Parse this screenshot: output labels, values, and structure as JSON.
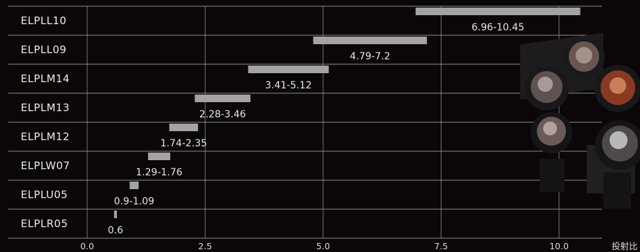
{
  "chart_data": {
    "type": "bar",
    "orientation": "horizontal-range",
    "categories": [
      "ELPLL10",
      "ELPLL09",
      "ELPLM14",
      "ELPLM13",
      "ELPLM12",
      "ELPLW07",
      "ELPLU05",
      "ELPLR05"
    ],
    "ranges": [
      [
        6.96,
        10.45
      ],
      [
        4.79,
        7.2
      ],
      [
        3.41,
        5.12
      ],
      [
        2.28,
        3.46
      ],
      [
        1.74,
        2.35
      ],
      [
        1.29,
        1.76
      ],
      [
        0.9,
        1.09
      ],
      [
        0.57,
        0.63
      ]
    ],
    "range_labels": [
      "6.96-10.45",
      "4.79-7.2",
      "3.41-5.12",
      "2.28-3.46",
      "1.74-2.35",
      "1.29-1.76",
      "0.9-1.09",
      "0.6"
    ],
    "x_ticks": [
      "0.0",
      "2.5",
      "5.0",
      "7.5",
      "10.0"
    ],
    "x_tick_values": [
      0,
      2.5,
      5,
      7.5,
      10
    ],
    "xlabel": "投射比",
    "xlim": [
      0,
      11
    ],
    "grid": true,
    "colors": {
      "bar": "#a3a3a3",
      "grid": "#bdbdbd",
      "background": "#0b0708",
      "text": "#e9e9e9"
    }
  }
}
